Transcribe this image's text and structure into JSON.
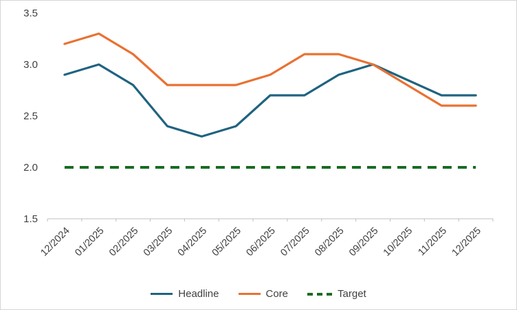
{
  "chart_data": {
    "type": "line",
    "title": "",
    "xlabel": "",
    "ylabel": "",
    "categories": [
      "12/2024",
      "01/2025",
      "02/2025",
      "03/2025",
      "04/2025",
      "05/2025",
      "06/2025",
      "07/2025",
      "08/2025",
      "09/2025",
      "10/2025",
      "11/2025",
      "12/2025"
    ],
    "series": [
      {
        "name": "Headline",
        "color": "#1F6380",
        "dash": null,
        "values": [
          2.9,
          3.0,
          2.8,
          2.4,
          2.3,
          2.4,
          2.7,
          2.7,
          2.9,
          3.0,
          2.85,
          2.7,
          2.7
        ]
      },
      {
        "name": "Core",
        "color": "#E97132",
        "dash": null,
        "values": [
          3.2,
          3.3,
          3.1,
          2.8,
          2.8,
          2.8,
          2.9,
          3.1,
          3.1,
          3.0,
          2.8,
          2.6,
          2.6
        ]
      },
      {
        "name": "Target",
        "color": "#196B24",
        "dash": "13 9",
        "values": [
          2.0,
          2.0,
          2.0,
          2.0,
          2.0,
          2.0,
          2.0,
          2.0,
          2.0,
          2.0,
          2.0,
          2.0,
          2.0
        ]
      }
    ],
    "ylim": [
      1.5,
      3.5
    ],
    "yticks": [
      1.5,
      2.0,
      2.5,
      3.0,
      3.5
    ],
    "ytick_labels": [
      "1.5",
      "2.0",
      "2.5",
      "3.0",
      "3.5"
    ],
    "grid": false,
    "legend_position": "bottom",
    "axis_color": "#BFBFBF",
    "label_color": "#404040",
    "x_label_rotation": -45
  }
}
